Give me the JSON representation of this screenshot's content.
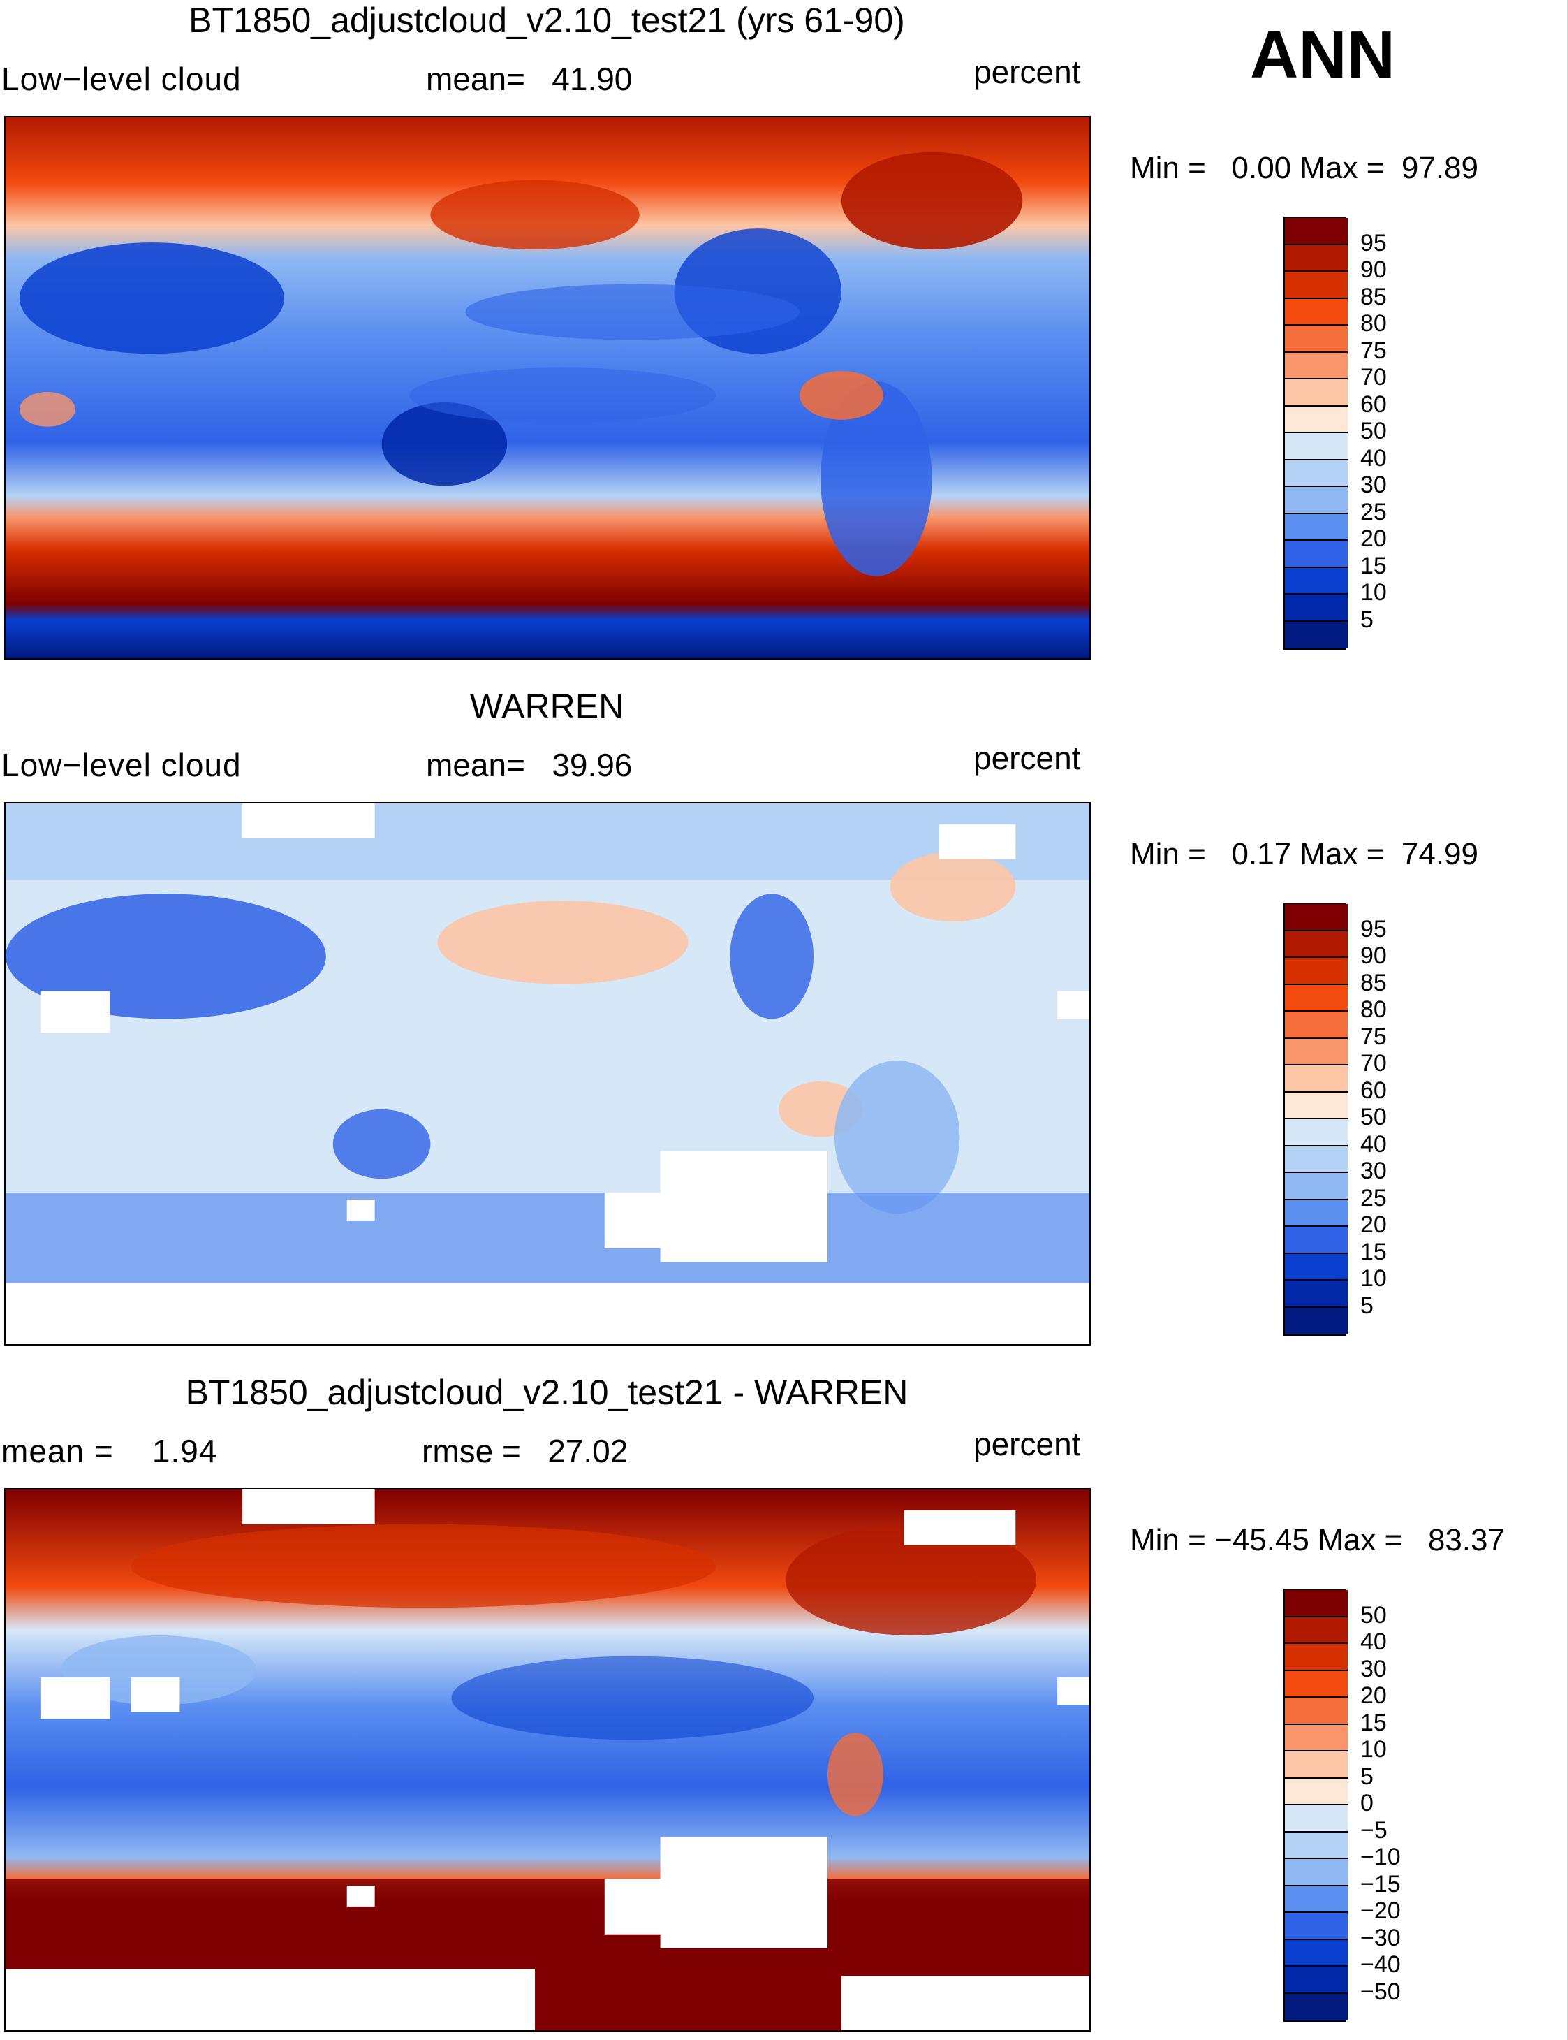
{
  "season": "ANN",
  "units": "percent",
  "panels": [
    {
      "title": "BT1850_adjustcloud_v2.10_test21 (yrs 61-90)",
      "variable": "Low−level cloud",
      "stat_label": "mean=",
      "stat_value": "41.90",
      "extra_label": "",
      "extra_value": "",
      "min_label": "Min =",
      "min_value": "0.00",
      "max_label": "Max =",
      "max_value": "97.89",
      "colorbar": {
        "labels": [
          "95",
          "90",
          "85",
          "80",
          "75",
          "70",
          "60",
          "50",
          "40",
          "30",
          "25",
          "20",
          "15",
          "10",
          "5"
        ],
        "colors": [
          "#7f0000",
          "#b21a00",
          "#d62f00",
          "#f24a0f",
          "#f46d3a",
          "#f8956b",
          "#fcc5a5",
          "#fde7d7",
          "#d6e8f8",
          "#b4d2f5",
          "#8fb8f2",
          "#5b8ff0",
          "#2f62e6",
          "#0a3fd0",
          "#0028a8",
          "#001a80"
        ]
      },
      "chart_data": {
        "type": "heatmap",
        "title": "BT1850_adjustcloud_v2.10_test21 (yrs 61-90)",
        "variable": "Low-level cloud",
        "units": "percent",
        "mean": 41.9,
        "min": 0.0,
        "max": 97.89,
        "contour_levels": [
          5,
          10,
          15,
          20,
          25,
          30,
          40,
          50,
          60,
          70,
          75,
          80,
          85,
          90,
          95
        ]
      }
    },
    {
      "title": "WARREN",
      "variable": "Low−level cloud",
      "stat_label": "mean=",
      "stat_value": "39.96",
      "extra_label": "",
      "extra_value": "",
      "min_label": "Min =",
      "min_value": "0.17",
      "max_label": "Max =",
      "max_value": "74.99",
      "colorbar": {
        "labels": [
          "95",
          "90",
          "85",
          "80",
          "75",
          "70",
          "60",
          "50",
          "40",
          "30",
          "25",
          "20",
          "15",
          "10",
          "5"
        ],
        "colors": [
          "#7f0000",
          "#b21a00",
          "#d62f00",
          "#f24a0f",
          "#f46d3a",
          "#f8956b",
          "#fcc5a5",
          "#fde7d7",
          "#d6e8f8",
          "#b4d2f5",
          "#8fb8f2",
          "#5b8ff0",
          "#2f62e6",
          "#0a3fd0",
          "#0028a8",
          "#001a80"
        ]
      },
      "chart_data": {
        "type": "heatmap",
        "title": "WARREN",
        "variable": "Low-level cloud",
        "units": "percent",
        "mean": 39.96,
        "min": 0.17,
        "max": 74.99,
        "contour_levels": [
          5,
          10,
          15,
          20,
          25,
          30,
          40,
          50,
          60,
          70,
          75,
          80,
          85,
          90,
          95
        ]
      }
    },
    {
      "title": "BT1850_adjustcloud_v2.10_test21 - WARREN",
      "variable": "mean =",
      "stat_label": "rmse =",
      "stat_value": "27.02",
      "extra_label": "mean =",
      "extra_value": "1.94",
      "min_label": "Min =",
      "min_value": "−45.45",
      "max_label": "Max =",
      "max_value": "83.37",
      "colorbar": {
        "labels": [
          "50",
          "40",
          "30",
          "20",
          "15",
          "10",
          "5",
          "0",
          "−5",
          "−10",
          "−15",
          "−20",
          "−30",
          "−40",
          "−50"
        ],
        "colors": [
          "#7f0000",
          "#b21a00",
          "#d62f00",
          "#f24a0f",
          "#f46d3a",
          "#f8956b",
          "#fcc5a5",
          "#fde7d7",
          "#d6e8f8",
          "#b4d2f5",
          "#8fb8f2",
          "#5b8ff0",
          "#2f62e6",
          "#0a3fd0",
          "#0028a8",
          "#001a80"
        ]
      },
      "chart_data": {
        "type": "heatmap",
        "title": "BT1850_adjustcloud_v2.10_test21 - WARREN",
        "units": "percent",
        "mean": 1.94,
        "rmse": 27.02,
        "min": -45.45,
        "max": 83.37,
        "contour_levels": [
          -50,
          -40,
          -30,
          -20,
          -15,
          -10,
          -5,
          0,
          5,
          10,
          15,
          20,
          30,
          40,
          50
        ]
      }
    }
  ]
}
